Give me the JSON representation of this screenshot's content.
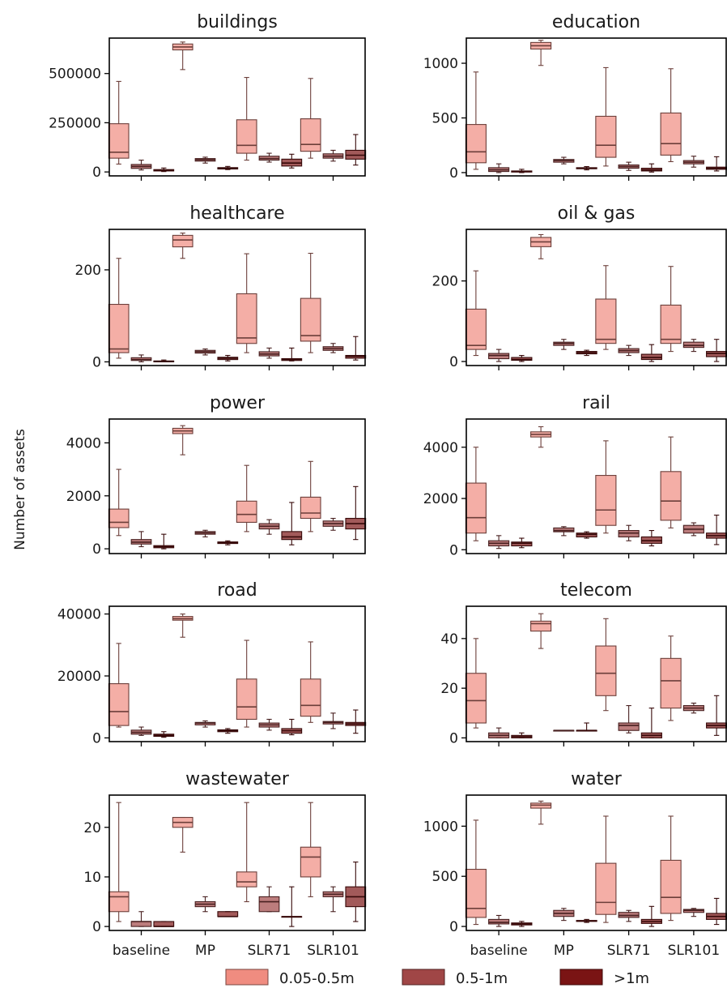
{
  "chart_data": {
    "type": "box",
    "ylabel": "Number of assets",
    "groups": [
      "baseline",
      "MP",
      "SLR71",
      "SLR101"
    ],
    "legend": [
      {
        "name": "0.05-0.5m",
        "color": "#f08c80"
      },
      {
        "name": "0.5-1m",
        "color": "#a04646"
      },
      {
        "name": ">1m",
        "color": "#7a1414"
      }
    ],
    "box_fill_alpha": 0.7,
    "panels": [
      {
        "title": "buildings",
        "ylim": [
          -20000,
          680000
        ],
        "yticks": [
          0,
          250000,
          500000
        ],
        "ytick_labels": [
          "0",
          "250000",
          "500000"
        ],
        "boxes": [
          [
            [
              40000,
              70000,
              100000,
              245000,
              460000
            ],
            [
              10000,
              18000,
              28000,
              38000,
              60000
            ],
            [
              2000,
              5000,
              8000,
              12000,
              20000
            ]
          ],
          [
            [
              520000,
              620000,
              635000,
              650000,
              660000
            ],
            [
              45000,
              55000,
              62000,
              68000,
              75000
            ],
            [
              12000,
              15000,
              18000,
              22000,
              28000
            ]
          ],
          [
            [
              60000,
              95000,
              135000,
              265000,
              480000
            ],
            [
              50000,
              60000,
              68000,
              80000,
              95000
            ],
            [
              20000,
              30000,
              45000,
              65000,
              90000
            ]
          ],
          [
            [
              70000,
              105000,
              140000,
              270000,
              475000
            ],
            [
              55000,
              70000,
              80000,
              92000,
              110000
            ],
            [
              35000,
              65000,
              85000,
              110000,
              190000
            ]
          ]
        ]
      },
      {
        "title": "education",
        "ylim": [
          -30,
          1230
        ],
        "yticks": [
          0,
          500,
          1000
        ],
        "ytick_labels": [
          "0",
          "500",
          "1000"
        ],
        "boxes": [
          [
            [
              30,
              90,
              190,
              440,
              920
            ],
            [
              0,
              10,
              25,
              45,
              80
            ],
            [
              0,
              5,
              10,
              15,
              30
            ]
          ],
          [
            [
              980,
              1130,
              1160,
              1190,
              1210
            ],
            [
              80,
              95,
              110,
              120,
              140
            ],
            [
              25,
              35,
              40,
              45,
              55
            ]
          ],
          [
            [
              60,
              140,
              250,
              515,
              960
            ],
            [
              20,
              40,
              55,
              70,
              95
            ],
            [
              5,
              15,
              25,
              40,
              80
            ]
          ],
          [
            [
              100,
              160,
              265,
              545,
              950
            ],
            [
              50,
              80,
              95,
              110,
              150
            ],
            [
              15,
              30,
              40,
              50,
              145
            ]
          ]
        ]
      },
      {
        "title": "healthcare",
        "ylim": [
          -8,
          288
        ],
        "yticks": [
          0,
          200
        ],
        "ytick_labels": [
          "0",
          "200"
        ],
        "boxes": [
          [
            [
              8,
              20,
              28,
              125,
              225
            ],
            [
              0,
              3,
              5,
              9,
              15
            ],
            [
              0,
              0,
              1,
              2,
              4
            ]
          ],
          [
            [
              225,
              250,
              265,
              275,
              280
            ],
            [
              15,
              19,
              22,
              25,
              28
            ],
            [
              2,
              5,
              8,
              10,
              14
            ]
          ],
          [
            [
              20,
              40,
              52,
              148,
              235
            ],
            [
              8,
              13,
              17,
              22,
              30
            ],
            [
              2,
              3,
              5,
              7,
              30
            ]
          ],
          [
            [
              20,
              45,
              57,
              138,
              236
            ],
            [
              20,
              25,
              29,
              33,
              40
            ],
            [
              4,
              8,
              12,
              14,
              55
            ]
          ]
        ]
      },
      {
        "title": "oil & gas",
        "ylim": [
          -10,
          328
        ],
        "yticks": [
          0,
          200
        ],
        "ytick_labels": [
          "0",
          "200"
        ],
        "boxes": [
          [
            [
              15,
              30,
              40,
              130,
              225
            ],
            [
              0,
              7,
              15,
              20,
              30
            ],
            [
              0,
              3,
              5,
              10,
              15
            ]
          ],
          [
            [
              255,
              285,
              297,
              308,
              315
            ],
            [
              30,
              40,
              45,
              48,
              55
            ],
            [
              15,
              19,
              22,
              25,
              28
            ]
          ],
          [
            [
              30,
              45,
              55,
              155,
              238
            ],
            [
              15,
              22,
              27,
              32,
              40
            ],
            [
              0,
              5,
              10,
              18,
              42
            ]
          ],
          [
            [
              25,
              45,
              55,
              140,
              236
            ],
            [
              25,
              35,
              40,
              48,
              55
            ],
            [
              0,
              12,
              20,
              25,
              55
            ]
          ]
        ]
      },
      {
        "title": "power",
        "ylim": [
          -180,
          4900
        ],
        "yticks": [
          0,
          2000,
          4000
        ],
        "ytick_labels": [
          "0",
          "2000",
          "4000"
        ],
        "boxes": [
          [
            [
              500,
              800,
              1000,
              1500,
              3000
            ],
            [
              80,
              180,
              250,
              350,
              650
            ],
            [
              0,
              40,
              80,
              120,
              550
            ]
          ],
          [
            [
              3550,
              4350,
              4450,
              4550,
              4650
            ],
            [
              450,
              550,
              600,
              650,
              700
            ],
            [
              150,
              200,
              230,
              260,
              300
            ]
          ],
          [
            [
              650,
              1000,
              1300,
              1800,
              3150
            ],
            [
              550,
              750,
              850,
              950,
              1100
            ],
            [
              150,
              350,
              450,
              650,
              1750
            ]
          ],
          [
            [
              650,
              1150,
              1350,
              1950,
              3300
            ],
            [
              700,
              850,
              950,
              1050,
              1150
            ],
            [
              350,
              750,
              950,
              1150,
              2350
            ]
          ]
        ]
      },
      {
        "title": "rail",
        "ylim": [
          -150,
          5100
        ],
        "yticks": [
          0,
          2000,
          4000
        ],
        "ytick_labels": [
          "0",
          "2000",
          "4000"
        ],
        "boxes": [
          [
            [
              350,
              650,
              1250,
              2600,
              4000
            ],
            [
              50,
              150,
              250,
              350,
              550
            ],
            [
              80,
              150,
              250,
              300,
              450
            ]
          ],
          [
            [
              4000,
              4400,
              4500,
              4600,
              4800
            ],
            [
              550,
              700,
              750,
              850,
              900
            ],
            [
              450,
              500,
              600,
              650,
              700
            ]
          ],
          [
            [
              650,
              950,
              1550,
              2900,
              4250
            ],
            [
              350,
              500,
              650,
              750,
              950
            ],
            [
              150,
              250,
              350,
              500,
              750
            ]
          ],
          [
            [
              850,
              1150,
              1900,
              3050,
              4400
            ],
            [
              550,
              650,
              800,
              950,
              1050
            ],
            [
              200,
              450,
              550,
              650,
              1350
            ]
          ]
        ]
      },
      {
        "title": "road",
        "ylim": [
          -1200,
          42500
        ],
        "yticks": [
          0,
          20000,
          40000
        ],
        "ytick_labels": [
          "0",
          "20000",
          "40000"
        ],
        "boxes": [
          [
            [
              3500,
              4000,
              8500,
              17500,
              30500
            ],
            [
              800,
              1200,
              1800,
              2500,
              3500
            ],
            [
              200,
              500,
              800,
              1200,
              2000
            ]
          ],
          [
            [
              32500,
              38000,
              38500,
              39200,
              40000
            ],
            [
              3500,
              4200,
              4800,
              5000,
              5500
            ],
            [
              1500,
              2000,
              2300,
              2600,
              3000
            ]
          ],
          [
            [
              3500,
              6000,
              10000,
              19000,
              31500
            ],
            [
              2500,
              3500,
              4200,
              4800,
              6000
            ],
            [
              1000,
              1500,
              2300,
              3000,
              6000
            ]
          ],
          [
            [
              5000,
              7000,
              10500,
              19000,
              31000
            ],
            [
              3000,
              4500,
              5000,
              5300,
              8000
            ],
            [
              1500,
              4000,
              4500,
              5000,
              9000
            ]
          ]
        ]
      },
      {
        "title": "telecom",
        "ylim": [
          -1.5,
          53
        ],
        "yticks": [
          0,
          20,
          40
        ],
        "ytick_labels": [
          "0",
          "20",
          "40"
        ],
        "boxes": [
          [
            [
              4,
              6,
              15,
              26,
              40
            ],
            [
              0,
              0,
              1,
              2,
              4
            ],
            [
              0,
              0,
              0.5,
              1,
              2
            ]
          ],
          [
            [
              36,
              43,
              46,
              47,
              50
            ],
            [
              3,
              3,
              3,
              3,
              3
            ],
            [
              3,
              3,
              3,
              3,
              6
            ]
          ],
          [
            [
              11,
              17,
              26,
              37,
              48
            ],
            [
              2,
              3,
              5,
              6,
              13
            ],
            [
              0,
              0,
              1,
              2,
              12
            ]
          ],
          [
            [
              7,
              12,
              23,
              32,
              41
            ],
            [
              10,
              11,
              12,
              13,
              14
            ],
            [
              1,
              4,
              5,
              6,
              17
            ]
          ]
        ]
      },
      {
        "title": "wastewater",
        "ylim": [
          -0.8,
          26.5
        ],
        "yticks": [
          0,
          10,
          20
        ],
        "ytick_labels": [
          "0",
          "10",
          "20"
        ],
        "boxes": [
          [
            [
              1,
              3,
              6,
              7,
              25
            ],
            [
              0,
              0,
              1,
              1,
              3
            ],
            [
              0,
              0,
              0,
              1,
              1
            ]
          ],
          [
            [
              15,
              20,
              21,
              22,
              22
            ],
            [
              3,
              4,
              4.5,
              5,
              6
            ],
            [
              2,
              2,
              2,
              3,
              3
            ]
          ],
          [
            [
              5,
              8,
              9,
              11,
              25
            ],
            [
              3,
              3,
              5,
              6,
              8
            ],
            [
              0,
              2,
              2,
              2,
              8
            ]
          ],
          [
            [
              6,
              10,
              14,
              16,
              25
            ],
            [
              3,
              6,
              6.5,
              7,
              8
            ],
            [
              1,
              4,
              6,
              8,
              13
            ]
          ]
        ]
      },
      {
        "title": "water",
        "ylim": [
          -40,
          1310
        ],
        "yticks": [
          0,
          500,
          1000
        ],
        "ytick_labels": [
          "0",
          "500",
          "1000"
        ],
        "boxes": [
          [
            [
              20,
              90,
              180,
              570,
              1060
            ],
            [
              0,
              25,
              40,
              70,
              110
            ],
            [
              0,
              15,
              25,
              35,
              50
            ]
          ],
          [
            [
              1020,
              1180,
              1210,
              1230,
              1250
            ],
            [
              60,
              100,
              130,
              160,
              180
            ],
            [
              40,
              50,
              55,
              60,
              70
            ]
          ],
          [
            [
              40,
              120,
              240,
              630,
              1100
            ],
            [
              50,
              90,
              110,
              140,
              160
            ],
            [
              0,
              30,
              50,
              70,
              200
            ]
          ],
          [
            [
              60,
              130,
              290,
              660,
              1100
            ],
            [
              100,
              140,
              160,
              170,
              180
            ],
            [
              20,
              70,
              100,
              130,
              280
            ]
          ]
        ]
      }
    ]
  }
}
